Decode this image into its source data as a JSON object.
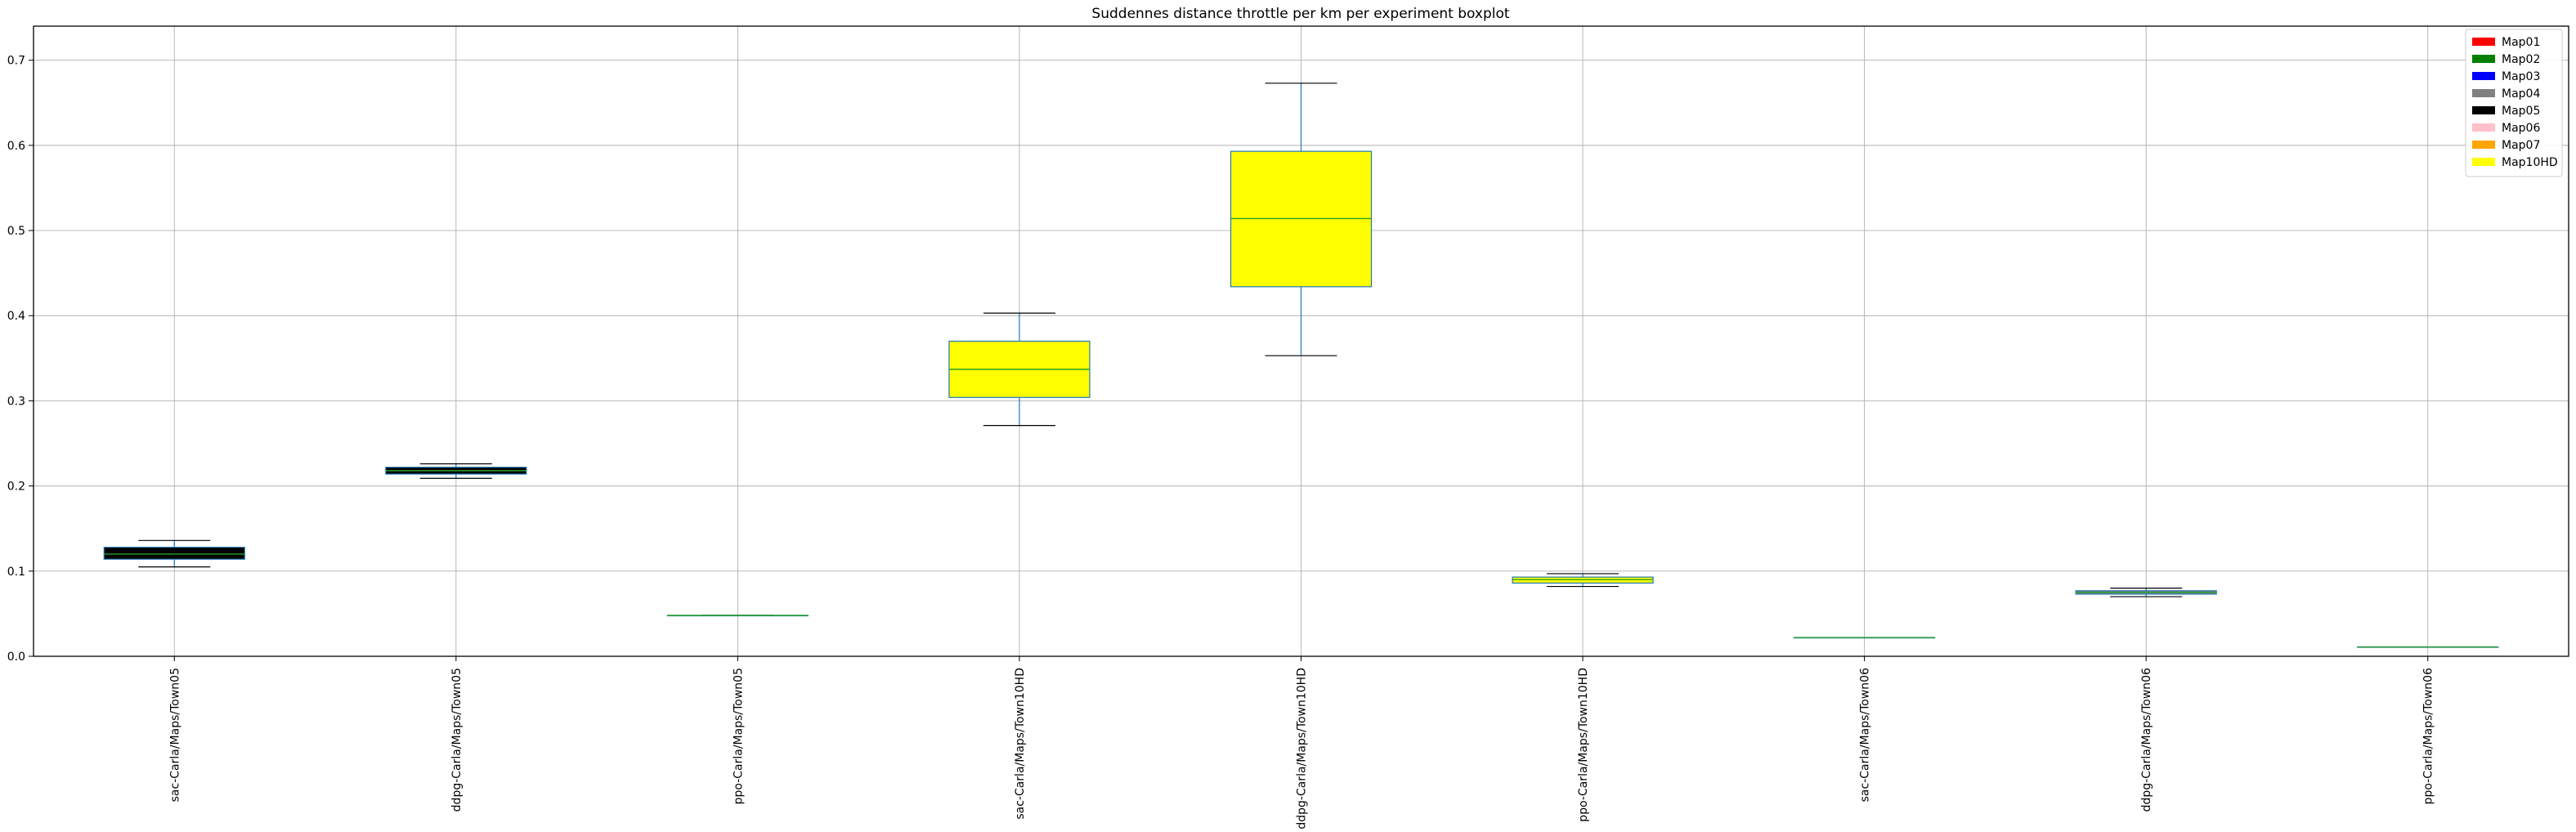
{
  "chart_data": {
    "type": "boxplot",
    "title": "Suddennes distance throttle per km per experiment boxplot",
    "xlabel": "",
    "ylabel": "",
    "ylim": [
      0,
      0.74
    ],
    "yticks": [
      "0.0",
      "0.1",
      "0.2",
      "0.3",
      "0.4",
      "0.5",
      "0.6",
      "0.7"
    ],
    "grid": true,
    "legend_position": "top-right",
    "legend": [
      {
        "label": "Map01",
        "color": "#ff0000"
      },
      {
        "label": "Map02",
        "color": "#008000"
      },
      {
        "label": "Map03",
        "color": "#0000ff"
      },
      {
        "label": "Map04",
        "color": "#808080"
      },
      {
        "label": "Map05",
        "color": "#000000"
      },
      {
        "label": "Map06",
        "color": "#ffc0cb"
      },
      {
        "label": "Map07",
        "color": "#ffa500"
      },
      {
        "label": "Map10HD",
        "color": "#ffff00"
      }
    ],
    "categories": [
      "sac-Carla/Maps/Town05",
      "ddpg-Carla/Maps/Town05",
      "ppo-Carla/Maps/Town05",
      "sac-Carla/Maps/Town10HD",
      "ddpg-Carla/Maps/Town10HD",
      "ppo-Carla/Maps/Town10HD",
      "sac-Carla/Maps/Town06",
      "ddpg-Carla/Maps/Town06",
      "ppo-Carla/Maps/Town06"
    ],
    "boxes": [
      {
        "whisker_low": 0.105,
        "q1": 0.114,
        "median": 0.12,
        "q3": 0.128,
        "whisker_high": 0.136,
        "color": "#000000"
      },
      {
        "whisker_low": 0.209,
        "q1": 0.214,
        "median": 0.218,
        "q3": 0.222,
        "whisker_high": 0.226,
        "color": "#000000"
      },
      {
        "whisker_low": 0.048,
        "q1": 0.048,
        "median": 0.048,
        "q3": 0.048,
        "whisker_high": 0.048,
        "color": "#000000"
      },
      {
        "whisker_low": 0.271,
        "q1": 0.304,
        "median": 0.337,
        "q3": 0.37,
        "whisker_high": 0.403,
        "color": "#ffff00"
      },
      {
        "whisker_low": 0.353,
        "q1": 0.434,
        "median": 0.514,
        "q3": 0.593,
        "whisker_high": 0.673,
        "color": "#ffff00"
      },
      {
        "whisker_low": 0.082,
        "q1": 0.086,
        "median": 0.09,
        "q3": 0.093,
        "whisker_high": 0.097,
        "color": "#ffff00"
      },
      {
        "whisker_low": 0.022,
        "q1": 0.022,
        "median": 0.022,
        "q3": 0.022,
        "whisker_high": 0.022,
        "color": "#808080"
      },
      {
        "whisker_low": 0.07,
        "q1": 0.073,
        "median": 0.075,
        "q3": 0.077,
        "whisker_high": 0.08,
        "color": "#808080"
      },
      {
        "whisker_low": 0.011,
        "q1": 0.011,
        "median": 0.011,
        "q3": 0.011,
        "whisker_high": 0.011,
        "color": "#808080"
      }
    ]
  }
}
